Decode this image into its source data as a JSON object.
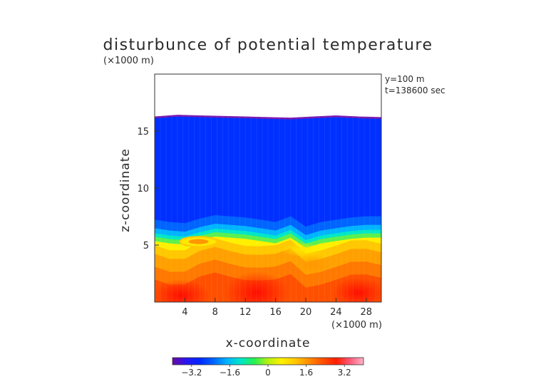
{
  "chart_data": {
    "type": "heatmap",
    "title": "disturbunce of potential temperature",
    "xlabel": "x-coordinate",
    "ylabel": "z-coordinate",
    "x_unit": "(×1000 m)",
    "y_unit": "(×1000 m)",
    "annotations": [
      "y=100 m",
      "t=138600 sec"
    ],
    "xlim": [
      0,
      30
    ],
    "ylim": [
      0,
      20
    ],
    "x_ticks": [
      4,
      8,
      12,
      16,
      20,
      24,
      28
    ],
    "x_tick_labels": [
      "4",
      "8",
      "12",
      "16",
      "20",
      "24",
      "28"
    ],
    "y_ticks": [
      5,
      10,
      15
    ],
    "y_tick_labels": [
      "5",
      "10",
      "15"
    ],
    "colorbar": {
      "range": [
        -4,
        4
      ],
      "ticks": [
        -3.2,
        -1.6,
        0,
        1.6,
        3.2
      ],
      "tick_labels": [
        "−3.2",
        "−1.6",
        "0",
        "1.6",
        "3.2"
      ],
      "colors": [
        "#6a0aa0",
        "#2a14f0",
        "#0028ff",
        "#0064ff",
        "#00b4ff",
        "#00e6c8",
        "#28f050",
        "#b4f014",
        "#fff000",
        "#ffc800",
        "#ff8c00",
        "#ff5000",
        "#ff1e00",
        "#ff5a78",
        "#ffb4c8"
      ]
    },
    "model_top_z": [
      16.2,
      16.35,
      16.3,
      16.25,
      16.2,
      16.15,
      16.1,
      16.2,
      16.3,
      16.2,
      16.15
    ],
    "model_top_x": [
      0,
      3,
      6,
      9,
      12,
      15,
      18,
      21,
      24,
      27,
      30
    ],
    "inversion_z": [
      5.6,
      5.4,
      5.3,
      5.7,
      6.0,
      5.9,
      5.8,
      5.6,
      5.4,
      5.9,
      5.0,
      5.4,
      5.6,
      5.8,
      5.9,
      5.9
    ],
    "inversion_x": [
      0,
      2,
      4,
      6,
      8,
      10,
      12,
      14,
      16,
      18,
      20,
      22,
      24,
      26,
      28,
      30
    ]
  }
}
